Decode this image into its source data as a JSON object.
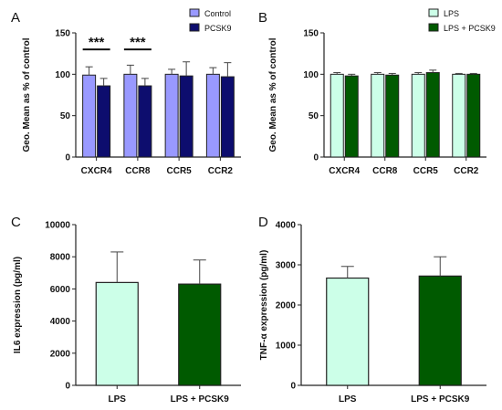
{
  "chart_data": [
    {
      "panel": "A",
      "type": "bar",
      "ylabel": "Geo. Mean as % of control",
      "ylim": [
        0,
        150
      ],
      "yticks": [
        0,
        50,
        100,
        150
      ],
      "categories": [
        "CXCR4",
        "CCR8",
        "CCR5",
        "CCR2"
      ],
      "series": [
        {
          "name": "Control",
          "color": "#9999ff",
          "values": [
            99,
            100,
            100,
            100
          ],
          "errors": [
            10,
            11,
            6,
            8
          ]
        },
        {
          "name": "PCSK9",
          "color": "#0d0d6e",
          "values": [
            86,
            86,
            98,
            97
          ],
          "errors": [
            9,
            9,
            17,
            17
          ]
        }
      ],
      "significance": [
        {
          "category": "CXCR4",
          "label": "***"
        },
        {
          "category": "CCR8",
          "label": "***"
        }
      ],
      "legend": "top-right"
    },
    {
      "panel": "B",
      "type": "bar",
      "ylabel": "Geo. Mean as % of control",
      "ylim": [
        0,
        150
      ],
      "yticks": [
        0,
        50,
        100,
        150
      ],
      "categories": [
        "CXCR4",
        "CCR8",
        "CCR5",
        "CCR2"
      ],
      "series": [
        {
          "name": "LPS",
          "color": "#ccffe8",
          "values": [
            100,
            100,
            100,
            100
          ],
          "errors": [
            2,
            2,
            2,
            1
          ]
        },
        {
          "name": "LPS + PCSK9",
          "color": "#005a00",
          "values": [
            98,
            99,
            102,
            100
          ],
          "errors": [
            2,
            2,
            3,
            1
          ]
        }
      ],
      "legend": "top-right"
    },
    {
      "panel": "C",
      "type": "bar",
      "ylabel": "IL6 expression (pg/ml)",
      "ylim": [
        0,
        10000
      ],
      "yticks": [
        0,
        2000,
        4000,
        6000,
        8000,
        10000
      ],
      "categories": [
        "LPS",
        "LPS + PCSK9"
      ],
      "values": [
        6400,
        6300
      ],
      "errors": [
        1900,
        1500
      ],
      "colors": [
        "#ccffe8",
        "#005a00"
      ]
    },
    {
      "panel": "D",
      "type": "bar",
      "ylabel": "TNF-α expression (pg/ml)",
      "ylim": [
        0,
        4000
      ],
      "yticks": [
        0,
        1000,
        2000,
        3000,
        4000
      ],
      "categories": [
        "LPS",
        "LPS + PCSK9"
      ],
      "values": [
        2670,
        2720
      ],
      "errors": [
        290,
        480
      ],
      "colors": [
        "#ccffe8",
        "#005a00"
      ]
    }
  ]
}
